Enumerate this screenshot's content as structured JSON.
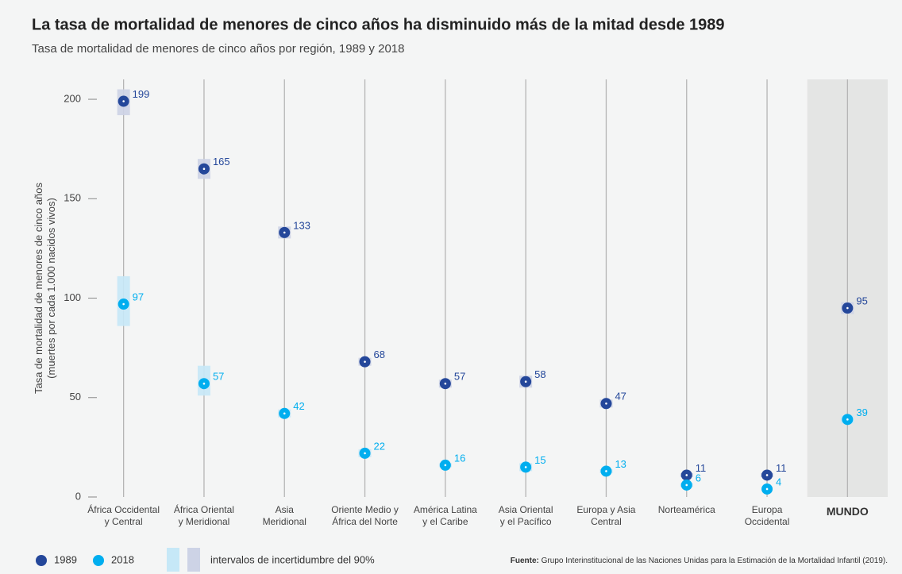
{
  "chart_data": {
    "type": "dot",
    "title": "La tasa de mortalidad de menores de cinco años ha disminuido más de la mitad desde 1989",
    "subtitle": "Tasa de mortalidad de menores de cinco años por región, 1989 y 2018",
    "y_label": [
      "Tasa de mortalidad de menores de cinco años",
      "(muertes por cada 1.000 nacidos vivos)"
    ],
    "categories": [
      [
        "África Occidental",
        "y Central"
      ],
      [
        "África Oriental",
        "y Meridional"
      ],
      [
        "Asia",
        "Meridional"
      ],
      [
        "Oriente Medio y",
        "África del Norte"
      ],
      [
        "América Latina",
        "y el Caribe"
      ],
      [
        "Asia Oriental",
        "y el Pacífico"
      ],
      [
        "Europa y Asia",
        "Central"
      ],
      [
        "Norteamérica"
      ],
      [
        "Europa",
        "Occidental"
      ],
      [
        "MUNDO"
      ]
    ],
    "highlight_index": 9,
    "series": [
      {
        "name": "1989",
        "color": "#24479a",
        "band_color": "#cdd3e6",
        "values": [
          199,
          165,
          133,
          68,
          57,
          58,
          47,
          11,
          11,
          95
        ],
        "lower": [
          192,
          160,
          130,
          66,
          55,
          55,
          45,
          10,
          10,
          92
        ],
        "upper": [
          205,
          170,
          136,
          70,
          59,
          61,
          49,
          12,
          12,
          98
        ]
      },
      {
        "name": "2018",
        "color": "#00aeef",
        "band_color": "#c6e8f7",
        "values": [
          97,
          57,
          42,
          22,
          16,
          15,
          13,
          6,
          4,
          39
        ],
        "lower": [
          86,
          51,
          40,
          20,
          15,
          13,
          12,
          5,
          4,
          37
        ],
        "upper": [
          111,
          66,
          44,
          24,
          17,
          17,
          14,
          7,
          4,
          41
        ]
      }
    ],
    "interval_label": "intervalos de incertidumbre del 90%",
    "source_prefix": "Fuente:",
    "source": " Grupo Interinstitucional de las Naciones Unidas para la Estimación de la Mortalidad Infantil (2019).",
    "ylim": [
      0,
      210
    ],
    "yticks": [
      0,
      50,
      100,
      150,
      200
    ]
  }
}
